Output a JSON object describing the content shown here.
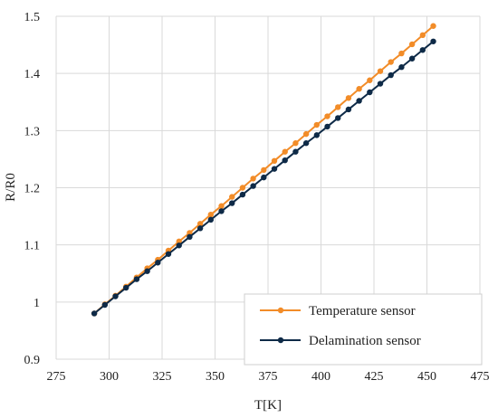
{
  "chart_data": {
    "type": "line",
    "title": "",
    "xlabel": "T[K]",
    "ylabel": "R/R0",
    "xlim": [
      275,
      475
    ],
    "ylim": [
      0.9,
      1.5
    ],
    "x_ticks": [
      "275",
      "300",
      "325",
      "350",
      "375",
      "400",
      "425",
      "450",
      "475"
    ],
    "y_ticks": [
      "0.9",
      "1",
      "1.1",
      "1.2",
      "1.3",
      "1.4",
      "1.5"
    ],
    "grid": "vertical and horizontal",
    "legend_position": "bottom-right",
    "x": [
      293,
      298,
      303,
      308,
      313,
      318,
      323,
      328,
      333,
      338,
      343,
      348,
      353,
      358,
      363,
      368,
      373,
      378,
      383,
      388,
      393,
      398,
      403,
      408,
      413,
      418,
      423,
      428,
      433,
      438,
      443,
      448,
      453
    ],
    "series": [
      {
        "name": "Temperature sensor",
        "color": "#f28c28",
        "values": [
          0.98,
          0.996,
          1.011,
          1.027,
          1.043,
          1.059,
          1.074,
          1.09,
          1.106,
          1.121,
          1.137,
          1.153,
          1.168,
          1.184,
          1.2,
          1.216,
          1.231,
          1.247,
          1.263,
          1.278,
          1.294,
          1.31,
          1.325,
          1.341,
          1.357,
          1.373,
          1.388,
          1.404,
          1.42,
          1.435,
          1.451,
          1.467,
          1.483
        ]
      },
      {
        "name": "Delamination sensor",
        "color": "#0e2a47",
        "values": [
          0.98,
          0.995,
          1.01,
          1.025,
          1.04,
          1.054,
          1.069,
          1.084,
          1.099,
          1.114,
          1.129,
          1.144,
          1.159,
          1.173,
          1.188,
          1.203,
          1.218,
          1.233,
          1.248,
          1.263,
          1.278,
          1.292,
          1.307,
          1.322,
          1.337,
          1.352,
          1.367,
          1.382,
          1.397,
          1.411,
          1.426,
          1.441,
          1.456
        ]
      }
    ]
  }
}
